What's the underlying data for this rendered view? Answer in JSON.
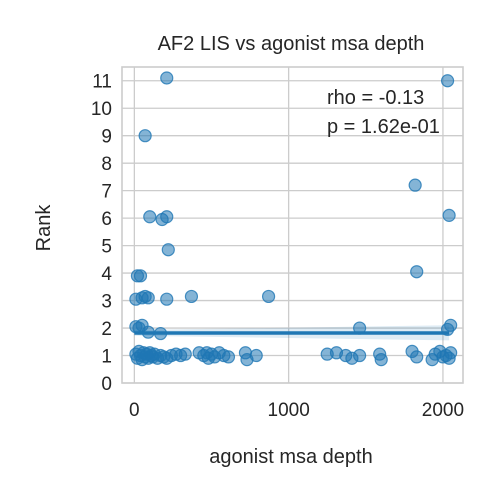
{
  "chart_data": {
    "type": "scatter",
    "title": "AF2 LIS vs agonist msa depth",
    "xlabel": "agonist msa depth",
    "ylabel": "Rank",
    "xlim": [
      -80,
      2130
    ],
    "ylim": [
      0,
      11.5
    ],
    "x_ticks": [
      0,
      1000,
      2000
    ],
    "y_ticks": [
      0,
      1,
      2,
      3,
      4,
      5,
      6,
      7,
      8,
      9,
      10,
      11
    ],
    "grid": true,
    "annotations": [
      "rho = -0.13",
      "p = 1.62e-01"
    ],
    "regression": {
      "x_start": 0,
      "x_end": 2040,
      "y_start": 1.82,
      "y_end": 1.82,
      "ci_start": [
        1.72,
        1.93
      ],
      "ci_end": [
        1.55,
        2.1
      ]
    },
    "points": [
      {
        "x": 210,
        "y": 11.1
      },
      {
        "x": 2030,
        "y": 11.0
      },
      {
        "x": 70,
        "y": 9.0
      },
      {
        "x": 1820,
        "y": 7.2
      },
      {
        "x": 100,
        "y": 6.05
      },
      {
        "x": 180,
        "y": 5.95
      },
      {
        "x": 210,
        "y": 6.05
      },
      {
        "x": 2040,
        "y": 6.1
      },
      {
        "x": 220,
        "y": 4.85
      },
      {
        "x": 20,
        "y": 3.9
      },
      {
        "x": 40,
        "y": 3.9
      },
      {
        "x": 1830,
        "y": 4.05
      },
      {
        "x": 10,
        "y": 3.05
      },
      {
        "x": 50,
        "y": 3.1
      },
      {
        "x": 70,
        "y": 3.15
      },
      {
        "x": 90,
        "y": 3.1
      },
      {
        "x": 210,
        "y": 3.05
      },
      {
        "x": 370,
        "y": 3.15
      },
      {
        "x": 870,
        "y": 3.15
      },
      {
        "x": 10,
        "y": 2.05
      },
      {
        "x": 30,
        "y": 2.0
      },
      {
        "x": 50,
        "y": 2.1
      },
      {
        "x": 90,
        "y": 1.85
      },
      {
        "x": 170,
        "y": 1.8
      },
      {
        "x": 2050,
        "y": 2.1
      },
      {
        "x": 1460,
        "y": 2.0
      },
      {
        "x": 2030,
        "y": 1.95
      },
      {
        "x": 10,
        "y": 1.05
      },
      {
        "x": 20,
        "y": 0.9
      },
      {
        "x": 30,
        "y": 1.15
      },
      {
        "x": 40,
        "y": 1.0
      },
      {
        "x": 50,
        "y": 0.85
      },
      {
        "x": 60,
        "y": 1.1
      },
      {
        "x": 70,
        "y": 0.95
      },
      {
        "x": 80,
        "y": 1.05
      },
      {
        "x": 90,
        "y": 0.9
      },
      {
        "x": 100,
        "y": 1.1
      },
      {
        "x": 110,
        "y": 1.0
      },
      {
        "x": 120,
        "y": 0.95
      },
      {
        "x": 130,
        "y": 1.05
      },
      {
        "x": 150,
        "y": 0.9
      },
      {
        "x": 170,
        "y": 1.0
      },
      {
        "x": 190,
        "y": 0.95
      },
      {
        "x": 210,
        "y": 0.9
      },
      {
        "x": 240,
        "y": 1.0
      },
      {
        "x": 270,
        "y": 1.05
      },
      {
        "x": 300,
        "y": 1.0
      },
      {
        "x": 330,
        "y": 1.05
      },
      {
        "x": 420,
        "y": 1.1
      },
      {
        "x": 450,
        "y": 1.0
      },
      {
        "x": 470,
        "y": 1.1
      },
      {
        "x": 480,
        "y": 0.9
      },
      {
        "x": 500,
        "y": 1.05
      },
      {
        "x": 520,
        "y": 0.95
      },
      {
        "x": 550,
        "y": 1.1
      },
      {
        "x": 580,
        "y": 1.0
      },
      {
        "x": 610,
        "y": 0.95
      },
      {
        "x": 720,
        "y": 1.1
      },
      {
        "x": 730,
        "y": 0.85
      },
      {
        "x": 790,
        "y": 1.0
      },
      {
        "x": 1250,
        "y": 1.05
      },
      {
        "x": 1310,
        "y": 1.1
      },
      {
        "x": 1370,
        "y": 1.0
      },
      {
        "x": 1410,
        "y": 0.9
      },
      {
        "x": 1460,
        "y": 1.0
      },
      {
        "x": 1590,
        "y": 1.05
      },
      {
        "x": 1600,
        "y": 0.85
      },
      {
        "x": 1800,
        "y": 1.15
      },
      {
        "x": 1830,
        "y": 0.95
      },
      {
        "x": 1930,
        "y": 0.85
      },
      {
        "x": 1950,
        "y": 1.05
      },
      {
        "x": 1980,
        "y": 1.15
      },
      {
        "x": 2000,
        "y": 0.95
      },
      {
        "x": 2020,
        "y": 1.0
      },
      {
        "x": 2040,
        "y": 0.9
      },
      {
        "x": 2050,
        "y": 1.1
      }
    ]
  }
}
